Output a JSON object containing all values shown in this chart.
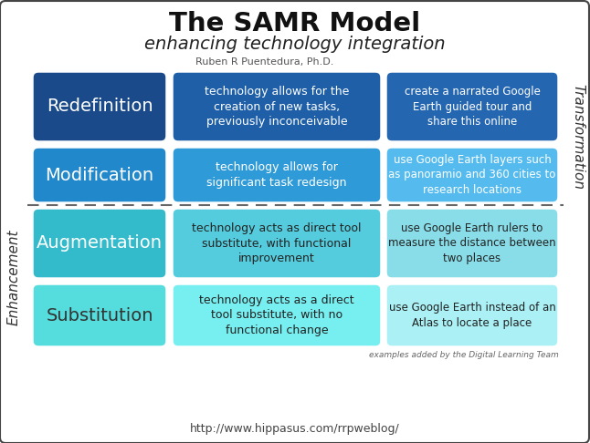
{
  "title": "The SAMR Model",
  "subtitle": "enhancing technology integration",
  "author": "Ruben R Puentedura, Ph.D.",
  "footer": "http://www.hippasus.com/rrpweblog/",
  "footnote": "examples added by the Digital Learning Team",
  "background_color": "#ffffff",
  "border_color": "#444444",
  "rows": [
    {
      "label": "Redefinition",
      "label_bg": "#1a4a8a",
      "label_text": "#ffffff",
      "desc": "technology allows for the\ncreation of new tasks,\npreviously inconceivable",
      "desc_bg": "#1e5fa8",
      "desc_text": "#ffffff",
      "example": "create a narrated Google\nEarth guided tour and\nshare this online",
      "example_bg": "#2566b0",
      "example_text": "#ffffff"
    },
    {
      "label": "Modification",
      "label_bg": "#2288cc",
      "label_text": "#ffffff",
      "desc": "technology allows for\nsignificant task redesign",
      "desc_bg": "#2e9ad8",
      "desc_text": "#ffffff",
      "example": "use Google Earth layers such\nas panoramio and 360 cities to\nresearch locations",
      "example_bg": "#55bbee",
      "example_text": "#ffffff"
    },
    {
      "label": "Augmentation",
      "label_bg": "#33bbcc",
      "label_text": "#ffffff",
      "desc": "technology acts as direct tool\nsubstitute, with functional\nimprovement",
      "desc_bg": "#55ccdd",
      "desc_text": "#222222",
      "example": "use Google Earth rulers to\nmeasure the distance between\ntwo places",
      "example_bg": "#88dde8",
      "example_text": "#222222"
    },
    {
      "label": "Substitution",
      "label_bg": "#55dddd",
      "label_text": "#333333",
      "desc": "technology acts as a direct\ntool substitute, with no\nfunctional change",
      "desc_bg": "#77eef0",
      "desc_text": "#222222",
      "example": "use Google Earth instead of an\nAtlas to locate a place",
      "example_bg": "#aaf0f5",
      "example_text": "#222222"
    }
  ],
  "divider_color": "#666666",
  "side_label_color": "#333333",
  "transformation_label": "Transformation",
  "enhancement_label": "Enhancement"
}
